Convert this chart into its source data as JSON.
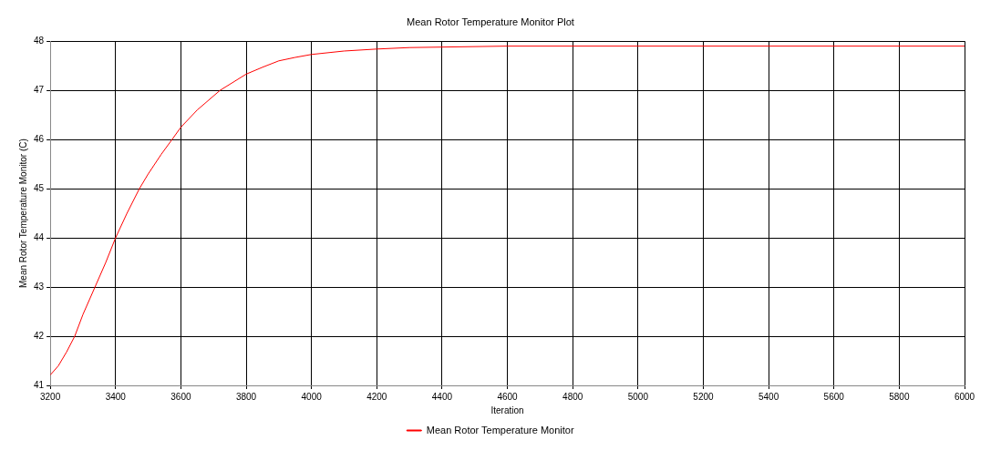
{
  "chart_data": {
    "type": "line",
    "title": "Mean Rotor Temperature Monitor Plot",
    "xlabel": "Iteration",
    "ylabel": "Mean Rotor Temperature Monitor (C)",
    "x": [
      3200,
      3225,
      3250,
      3275,
      3300,
      3337,
      3370,
      3400,
      3435,
      3473,
      3500,
      3540,
      3573,
      3600,
      3650,
      3720,
      3800,
      3850,
      3900,
      3950,
      4000,
      4100,
      4200,
      4300,
      4400,
      4600,
      5000,
      6000
    ],
    "series": [
      {
        "name": "Mean Rotor Temperature Monitor",
        "color": "#ff0000",
        "values": [
          41.21,
          41.4,
          41.68,
          42.0,
          42.44,
          43.0,
          43.5,
          44.0,
          44.5,
          45.0,
          45.3,
          45.7,
          46.0,
          46.25,
          46.6,
          47.0,
          47.33,
          47.47,
          47.6,
          47.67,
          47.73,
          47.8,
          47.84,
          47.87,
          47.88,
          47.9,
          47.9,
          47.9
        ]
      }
    ],
    "xlim": [
      3200,
      6000
    ],
    "xticks": [
      3200,
      3400,
      3600,
      3800,
      4000,
      4200,
      4400,
      4600,
      4800,
      5000,
      5200,
      5400,
      5600,
      5800,
      6000
    ],
    "ylim": [
      41,
      48
    ],
    "yticks": [
      41,
      42,
      43,
      44,
      45,
      46,
      47,
      48
    ],
    "grid": true,
    "legend": "bottom",
    "marker": "none",
    "line_style": "solid"
  }
}
